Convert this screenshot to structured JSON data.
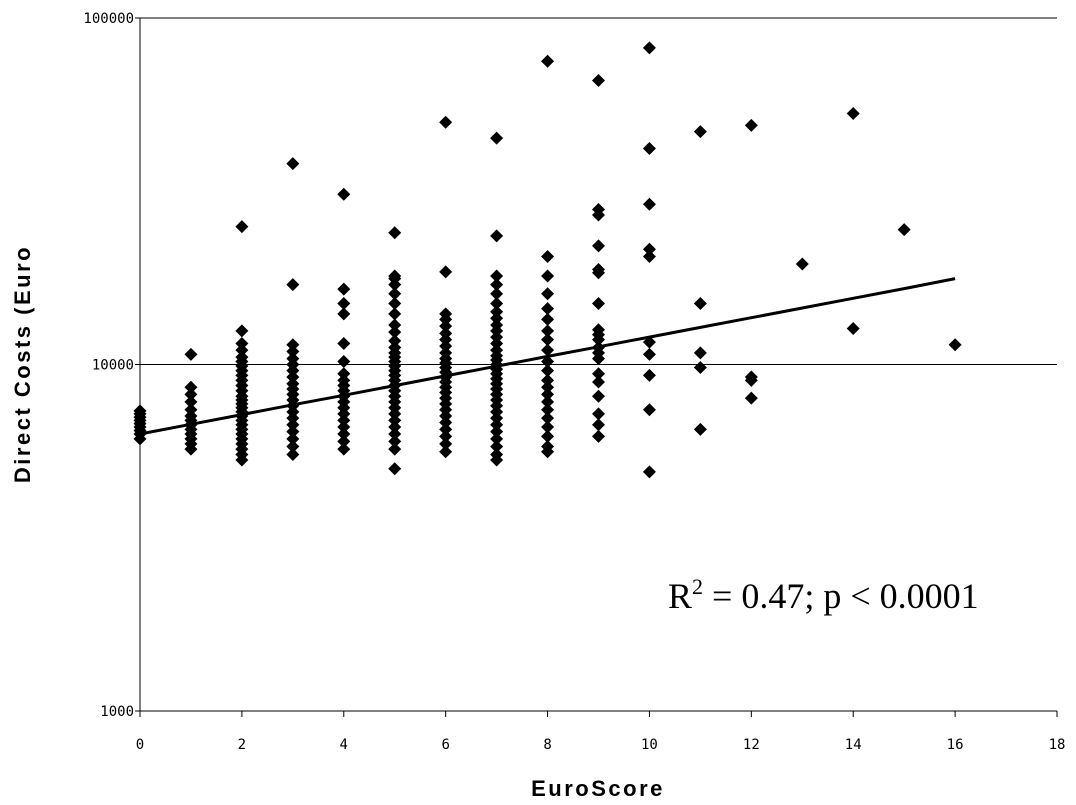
{
  "chart_data": {
    "type": "scatter",
    "title": "",
    "xlabel": "EuroScore",
    "ylabel": "Direct Costs (Euro",
    "xlim": [
      0,
      18
    ],
    "ylim": [
      1000,
      100000
    ],
    "y_scale": "log",
    "x_ticks": [
      "0",
      "2",
      "4",
      "6",
      "8",
      "10",
      "12",
      "14",
      "16",
      "18"
    ],
    "y_ticks": [
      "1000",
      "10000",
      "100000"
    ],
    "annotation": {
      "r2": "R",
      "sup": "2",
      "rest": " = 0.47; p < 0.0001"
    },
    "marker_color": "#000000",
    "series": [
      {
        "type": "scatter",
        "points": [
          [
            0,
            6100
          ],
          [
            0,
            6300
          ],
          [
            0,
            6450
          ],
          [
            0,
            6600
          ],
          [
            0,
            6750
          ],
          [
            0,
            6900
          ],
          [
            0,
            7050
          ],
          [
            0,
            7200
          ],
          [
            0,
            7350
          ],
          [
            1,
            5700
          ],
          [
            1,
            5900
          ],
          [
            1,
            6100
          ],
          [
            1,
            6300
          ],
          [
            1,
            6500
          ],
          [
            1,
            6700
          ],
          [
            1,
            6900
          ],
          [
            1,
            7100
          ],
          [
            1,
            7400
          ],
          [
            1,
            7800
          ],
          [
            1,
            8200
          ],
          [
            1,
            8600
          ],
          [
            1,
            10700
          ],
          [
            2,
            5300
          ],
          [
            2,
            5500
          ],
          [
            2,
            5700
          ],
          [
            2,
            5900
          ],
          [
            2,
            6100
          ],
          [
            2,
            6300
          ],
          [
            2,
            6500
          ],
          [
            2,
            6700
          ],
          [
            2,
            6900
          ],
          [
            2,
            7100
          ],
          [
            2,
            7300
          ],
          [
            2,
            7500
          ],
          [
            2,
            7700
          ],
          [
            2,
            7900
          ],
          [
            2,
            8100
          ],
          [
            2,
            8400
          ],
          [
            2,
            8700
          ],
          [
            2,
            9000
          ],
          [
            2,
            9300
          ],
          [
            2,
            9600
          ],
          [
            2,
            9900
          ],
          [
            2,
            10200
          ],
          [
            2,
            10500
          ],
          [
            2,
            11000
          ],
          [
            2,
            11500
          ],
          [
            2,
            12500
          ],
          [
            2,
            25000
          ],
          [
            3,
            5500
          ],
          [
            3,
            5800
          ],
          [
            3,
            6100
          ],
          [
            3,
            6400
          ],
          [
            3,
            6700
          ],
          [
            3,
            7000
          ],
          [
            3,
            7300
          ],
          [
            3,
            7600
          ],
          [
            3,
            7900
          ],
          [
            3,
            8200
          ],
          [
            3,
            8500
          ],
          [
            3,
            8800
          ],
          [
            3,
            9200
          ],
          [
            3,
            9600
          ],
          [
            3,
            10000
          ],
          [
            3,
            10400
          ],
          [
            3,
            10900
          ],
          [
            3,
            11400
          ],
          [
            3,
            17000
          ],
          [
            3,
            38000
          ],
          [
            4,
            5700
          ],
          [
            4,
            6000
          ],
          [
            4,
            6300
          ],
          [
            4,
            6600
          ],
          [
            4,
            6900
          ],
          [
            4,
            7200
          ],
          [
            4,
            7500
          ],
          [
            4,
            7800
          ],
          [
            4,
            8100
          ],
          [
            4,
            8400
          ],
          [
            4,
            8700
          ],
          [
            4,
            9000
          ],
          [
            4,
            9400
          ],
          [
            4,
            10200
          ],
          [
            4,
            11500
          ],
          [
            4,
            14000
          ],
          [
            4,
            15000
          ],
          [
            4,
            16500
          ],
          [
            4,
            31000
          ],
          [
            5,
            5000
          ],
          [
            5,
            5700
          ],
          [
            5,
            6000
          ],
          [
            5,
            6300
          ],
          [
            5,
            6600
          ],
          [
            5,
            6900
          ],
          [
            5,
            7200
          ],
          [
            5,
            7500
          ],
          [
            5,
            7800
          ],
          [
            5,
            8100
          ],
          [
            5,
            8400
          ],
          [
            5,
            8700
          ],
          [
            5,
            9000
          ],
          [
            5,
            9300
          ],
          [
            5,
            9600
          ],
          [
            5,
            9900
          ],
          [
            5,
            10200
          ],
          [
            5,
            10500
          ],
          [
            5,
            10800
          ],
          [
            5,
            11200
          ],
          [
            5,
            11700
          ],
          [
            5,
            12400
          ],
          [
            5,
            13000
          ],
          [
            5,
            14000
          ],
          [
            5,
            15000
          ],
          [
            5,
            16000
          ],
          [
            5,
            17000
          ],
          [
            5,
            17700
          ],
          [
            5,
            18000
          ],
          [
            5,
            24000
          ],
          [
            6,
            5600
          ],
          [
            6,
            5900
          ],
          [
            6,
            6200
          ],
          [
            6,
            6500
          ],
          [
            6,
            6800
          ],
          [
            6,
            7100
          ],
          [
            6,
            7400
          ],
          [
            6,
            7700
          ],
          [
            6,
            8000
          ],
          [
            6,
            8300
          ],
          [
            6,
            8600
          ],
          [
            6,
            8900
          ],
          [
            6,
            9200
          ],
          [
            6,
            9500
          ],
          [
            6,
            9800
          ],
          [
            6,
            10100
          ],
          [
            6,
            10400
          ],
          [
            6,
            10800
          ],
          [
            6,
            11300
          ],
          [
            6,
            11800
          ],
          [
            6,
            12300
          ],
          [
            6,
            12900
          ],
          [
            6,
            13500
          ],
          [
            6,
            14000
          ],
          [
            6,
            18500
          ],
          [
            6,
            50000
          ],
          [
            7,
            5300
          ],
          [
            7,
            5500
          ],
          [
            7,
            5800
          ],
          [
            7,
            6100
          ],
          [
            7,
            6400
          ],
          [
            7,
            6700
          ],
          [
            7,
            7000
          ],
          [
            7,
            7300
          ],
          [
            7,
            7600
          ],
          [
            7,
            7900
          ],
          [
            7,
            8200
          ],
          [
            7,
            8500
          ],
          [
            7,
            8800
          ],
          [
            7,
            9100
          ],
          [
            7,
            9400
          ],
          [
            7,
            9700
          ],
          [
            7,
            10000
          ],
          [
            7,
            10300
          ],
          [
            7,
            10600
          ],
          [
            7,
            11000
          ],
          [
            7,
            11500
          ],
          [
            7,
            12000
          ],
          [
            7,
            12500
          ],
          [
            7,
            13000
          ],
          [
            7,
            13600
          ],
          [
            7,
            14200
          ],
          [
            7,
            15000
          ],
          [
            7,
            16000
          ],
          [
            7,
            17000
          ],
          [
            7,
            18000
          ],
          [
            7,
            23500
          ],
          [
            7,
            45000
          ],
          [
            8,
            5600
          ],
          [
            8,
            5800
          ],
          [
            8,
            6200
          ],
          [
            8,
            6600
          ],
          [
            8,
            7000
          ],
          [
            8,
            7400
          ],
          [
            8,
            7800
          ],
          [
            8,
            8200
          ],
          [
            8,
            8600
          ],
          [
            8,
            9000
          ],
          [
            8,
            9600
          ],
          [
            8,
            10200
          ],
          [
            8,
            11000
          ],
          [
            8,
            11800
          ],
          [
            8,
            12500
          ],
          [
            8,
            13500
          ],
          [
            8,
            14500
          ],
          [
            8,
            16000
          ],
          [
            8,
            18000
          ],
          [
            8,
            20500
          ],
          [
            8,
            75000
          ],
          [
            9,
            6200
          ],
          [
            9,
            6700
          ],
          [
            9,
            7200
          ],
          [
            9,
            8100
          ],
          [
            9,
            8900
          ],
          [
            9,
            9400
          ],
          [
            9,
            10400
          ],
          [
            9,
            10800
          ],
          [
            9,
            11200
          ],
          [
            9,
            11800
          ],
          [
            9,
            12200
          ],
          [
            9,
            12600
          ],
          [
            9,
            15000
          ],
          [
            9,
            18400
          ],
          [
            9,
            18800
          ],
          [
            9,
            22000
          ],
          [
            9,
            27000
          ],
          [
            9,
            28000
          ],
          [
            9,
            66000
          ],
          [
            10,
            4900
          ],
          [
            10,
            7400
          ],
          [
            10,
            9300
          ],
          [
            10,
            10700
          ],
          [
            10,
            11600
          ],
          [
            10,
            20500
          ],
          [
            10,
            21500
          ],
          [
            10,
            29000
          ],
          [
            10,
            42000
          ],
          [
            10,
            82000
          ],
          [
            11,
            6500
          ],
          [
            11,
            9800
          ],
          [
            11,
            10800
          ],
          [
            11,
            15000
          ],
          [
            11,
            47000
          ],
          [
            12,
            8000
          ],
          [
            12,
            9000
          ],
          [
            12,
            9200
          ],
          [
            12,
            49000
          ],
          [
            13,
            19500
          ],
          [
            14,
            12700
          ],
          [
            14,
            53000
          ],
          [
            15,
            24500
          ],
          [
            16,
            11400
          ]
        ]
      },
      {
        "type": "line",
        "points": [
          [
            0,
            6300
          ],
          [
            1,
            6720
          ],
          [
            2,
            7170
          ],
          [
            3,
            7650
          ],
          [
            4,
            8150
          ],
          [
            5,
            8690
          ],
          [
            6,
            9270
          ],
          [
            7,
            9890
          ],
          [
            8,
            10550
          ],
          [
            9,
            11250
          ],
          [
            10,
            12000
          ],
          [
            11,
            12800
          ],
          [
            12,
            13650
          ],
          [
            13,
            14560
          ],
          [
            14,
            15530
          ],
          [
            15,
            16560
          ],
          [
            16,
            17700
          ]
        ]
      }
    ]
  }
}
